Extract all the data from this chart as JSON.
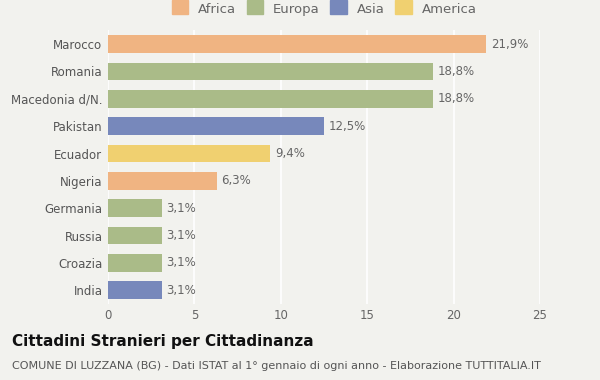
{
  "countries": [
    "Marocco",
    "Romania",
    "Macedonia d/N.",
    "Pakistan",
    "Ecuador",
    "Nigeria",
    "Germania",
    "Russia",
    "Croazia",
    "India"
  ],
  "values": [
    21.9,
    18.8,
    18.8,
    12.5,
    9.4,
    6.3,
    3.1,
    3.1,
    3.1,
    3.1
  ],
  "labels": [
    "21,9%",
    "18,8%",
    "18,8%",
    "12,5%",
    "9,4%",
    "6,3%",
    "3,1%",
    "3,1%",
    "3,1%",
    "3,1%"
  ],
  "colors": [
    "#F0B482",
    "#AABB88",
    "#AABB88",
    "#7788BB",
    "#F0D070",
    "#F0B482",
    "#AABB88",
    "#AABB88",
    "#AABB88",
    "#7788BB"
  ],
  "legend": [
    {
      "label": "Africa",
      "color": "#F0B482"
    },
    {
      "label": "Europa",
      "color": "#AABB88"
    },
    {
      "label": "Asia",
      "color": "#7788BB"
    },
    {
      "label": "America",
      "color": "#F0D070"
    }
  ],
  "title": "Cittadini Stranieri per Cittadinanza",
  "subtitle": "COMUNE DI LUZZANA (BG) - Dati ISTAT al 1° gennaio di ogni anno - Elaborazione TUTTITALIA.IT",
  "xlim": [
    0,
    25
  ],
  "xticks": [
    0,
    5,
    10,
    15,
    20,
    25
  ],
  "background_color": "#f2f2ee",
  "bar_height": 0.65,
  "title_fontsize": 11,
  "subtitle_fontsize": 8,
  "label_fontsize": 8.5,
  "tick_fontsize": 8.5,
  "legend_fontsize": 9.5
}
